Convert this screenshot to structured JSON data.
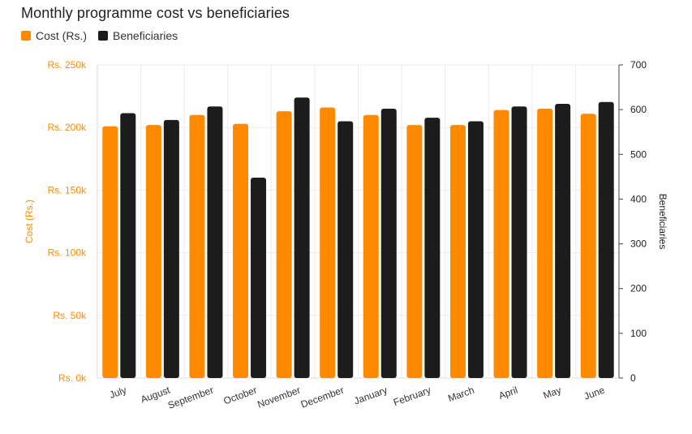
{
  "chart_data": {
    "type": "bar",
    "title": "Monthly programme cost vs beneficiaries",
    "categories": [
      "July",
      "August",
      "September",
      "October",
      "November",
      "December",
      "January",
      "February",
      "March",
      "April",
      "May",
      "June"
    ],
    "series": [
      {
        "name": "Cost (Rs.)",
        "axis": "left",
        "color": "#ff8a00",
        "values": [
          201000,
          202000,
          210000,
          203000,
          213000,
          216000,
          210000,
          202000,
          202000,
          214000,
          215000,
          211000
        ]
      },
      {
        "name": "Beneficiaries",
        "axis": "right",
        "color": "#1c1c1c",
        "values": [
          592,
          577,
          607,
          448,
          627,
          574,
          602,
          582,
          574,
          607,
          613,
          617
        ]
      }
    ],
    "ylabel": "Cost (Rs.)",
    "y2label": "Beneficiaries",
    "ylim": [
      0,
      250000
    ],
    "y2lim": [
      0,
      700
    ],
    "yticks": [
      "Rs. 0k",
      "Rs. 50k",
      "Rs. 100k",
      "Rs. 150k",
      "Rs. 200k",
      "Rs. 250k"
    ],
    "y2ticks": [
      "0",
      "100",
      "200",
      "300",
      "400",
      "500",
      "600",
      "700"
    ],
    "grid": true,
    "legend_position": "top-left"
  }
}
